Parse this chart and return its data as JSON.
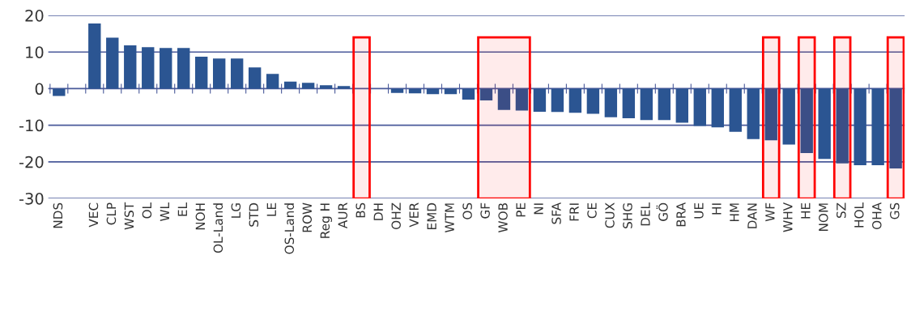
{
  "chart_data": {
    "type": "bar",
    "categories": [
      "NDS",
      null,
      "VEC",
      "CLP",
      "WST",
      "OL",
      "WL",
      "EL",
      "NOH",
      "OL-Land",
      "LG",
      "STD",
      "LE",
      "OS-Land",
      "ROW",
      "Reg H",
      "AUR",
      "BS",
      "DH",
      "OHZ",
      "VER",
      "EMD",
      "WTM",
      "OS",
      "GF",
      "WOB",
      "PE",
      "NI",
      "SFA",
      "FRI",
      "CE",
      "CUX",
      "SHG",
      "DEL",
      "GÖ",
      "BRA",
      "UE",
      "HI",
      "HM",
      "DAN",
      "WF",
      "WHV",
      "HE",
      "NOM",
      "SZ",
      "HOL",
      "OHA",
      "GS"
    ],
    "values": [
      -2.0,
      null,
      17.8,
      13.9,
      11.8,
      11.3,
      11.1,
      11.1,
      8.7,
      8.2,
      8.2,
      5.8,
      4.0,
      1.9,
      1.6,
      0.9,
      0.7,
      null,
      0,
      -1.2,
      -1.3,
      -1.5,
      -1.5,
      -3.0,
      -3.2,
      -5.8,
      -6.0,
      -6.3,
      -6.4,
      -6.6,
      -6.9,
      -7.8,
      -8.1,
      -8.6,
      -8.6,
      -9.3,
      -10.2,
      -10.6,
      -11.8,
      -13.8,
      -14.1,
      -15.3,
      -17.6,
      -19.2,
      -20.4,
      -20.9,
      -20.9,
      -21.8
    ],
    "color": "#2b5592",
    "ylim": [
      -30,
      20
    ],
    "yticks": [
      -30,
      -20,
      -10,
      0,
      10,
      20
    ],
    "grid": "y",
    "bands": [
      {
        "axis": "x",
        "from": "BS",
        "to": "BS",
        "color": "#ff0000"
      },
      {
        "axis": "x",
        "from": "GF",
        "to": "PE",
        "color": "#ff0000"
      },
      {
        "axis": "x",
        "from": "WF",
        "to": "WF",
        "color": "#ff0000"
      },
      {
        "axis": "x",
        "from": "HE",
        "to": "HE",
        "color": "#ff0000"
      },
      {
        "axis": "x",
        "from": "SZ",
        "to": "SZ",
        "color": "#ff0000"
      },
      {
        "axis": "x",
        "from": "GS",
        "to": "GS",
        "color": "#ff0000"
      }
    ]
  }
}
